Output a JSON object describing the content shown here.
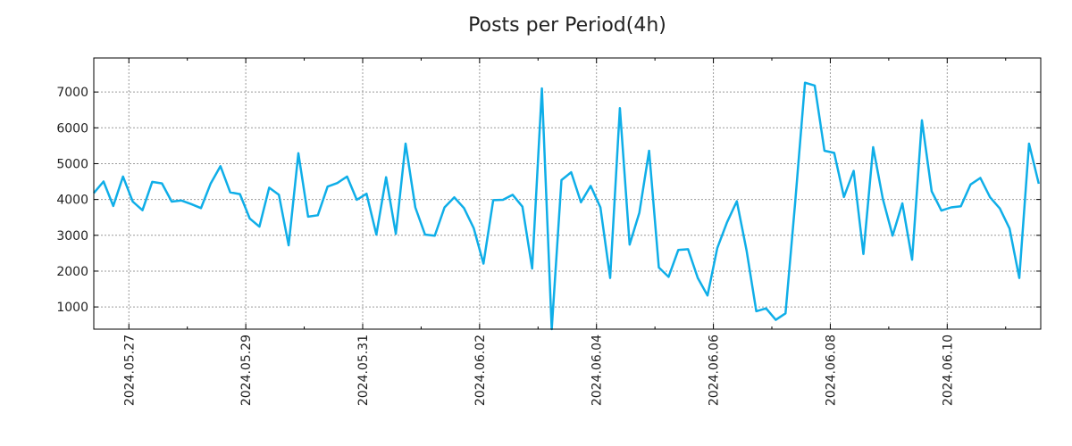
{
  "chart_data": {
    "type": "line",
    "title": "Posts per Period(4h)",
    "xlabel": "",
    "ylabel": "",
    "grid": true,
    "line_color": "#0faee8",
    "interval_hours": 4,
    "start_offset_days": -0.6,
    "x_tick_labels": [
      "2024.05.27",
      "2024.05.29",
      "2024.05.31",
      "2024.06.02",
      "2024.06.04",
      "2024.06.06",
      "2024.06.08",
      "2024.06.10"
    ],
    "y_ticks": [
      1000,
      2000,
      3000,
      4000,
      5000,
      6000,
      7000
    ],
    "xlim_days": [
      -0.6,
      15.6
    ],
    "ylim": [
      380,
      7950
    ],
    "series": [
      {
        "name": "Posts",
        "values": [
          4180,
          4500,
          3820,
          4640,
          3940,
          3700,
          4490,
          4450,
          3940,
          3970,
          3870,
          3760,
          4450,
          4930,
          4200,
          4150,
          3470,
          3240,
          4330,
          4130,
          2720,
          5290,
          3520,
          3560,
          4360,
          4460,
          4640,
          3990,
          4160,
          3020,
          4620,
          3040,
          5560,
          3780,
          3020,
          2990,
          3780,
          4060,
          3760,
          3200,
          2210,
          3980,
          3990,
          4130,
          3800,
          2070,
          7100,
          380,
          4540,
          4760,
          3920,
          4380,
          3780,
          1810,
          6550,
          2740,
          3630,
          5360,
          2100,
          1840,
          2590,
          2610,
          1810,
          1320,
          2640,
          3360,
          3950,
          2580,
          880,
          960,
          640,
          820,
          3940,
          7260,
          7180,
          5360,
          5300,
          4070,
          4800,
          2480,
          5460,
          4010,
          2990,
          3890,
          2320,
          6210,
          4230,
          3690,
          3780,
          3810,
          4420,
          4600,
          4060,
          3750,
          3190,
          1810,
          5560,
          4440
        ]
      }
    ]
  }
}
